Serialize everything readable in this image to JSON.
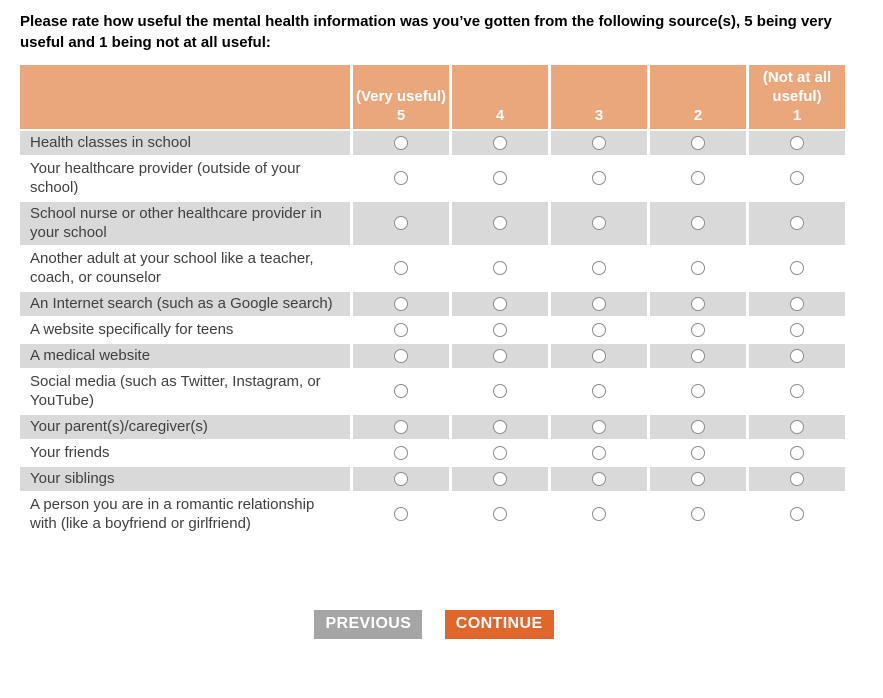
{
  "question": {
    "text": "Please rate how useful the mental health information was you’ve gotten from the following source(s), 5 being very useful and 1 being not at all useful:"
  },
  "table": {
    "columns": [
      {
        "caption": "(Very useful)",
        "value": "5"
      },
      {
        "caption": "",
        "value": "4"
      },
      {
        "caption": "",
        "value": "3"
      },
      {
        "caption": "",
        "value": "2"
      },
      {
        "caption": "(Not at all useful)",
        "value": "1"
      }
    ],
    "rows": [
      {
        "label": "Health classes in school",
        "selected": null
      },
      {
        "label": "Your healthcare provider (outside of your school)",
        "selected": null
      },
      {
        "label": "School nurse or other healthcare provider in your school",
        "selected": null
      },
      {
        "label": "Another adult at your school like a teacher, coach, or counselor",
        "selected": null
      },
      {
        "label": "An Internet search (such as a Google search)",
        "selected": null
      },
      {
        "label": "A website specifically for teens",
        "selected": null
      },
      {
        "label": "A medical website",
        "selected": null
      },
      {
        "label": "Social media (such as Twitter, Instagram, or YouTube)",
        "selected": null
      },
      {
        "label": "Your parent(s)/caregiver(s)",
        "selected": null
      },
      {
        "label": "Your friends",
        "selected": null
      },
      {
        "label": "Your siblings",
        "selected": null
      },
      {
        "label": "A person you are in a romantic relationship with (like a boyfriend or girlfriend)",
        "selected": null
      }
    ]
  },
  "buttons": {
    "previous": "PREVIOUS",
    "continue": "CONTINUE"
  },
  "colors": {
    "header_bg": "#EAA77C",
    "header_text": "#FFFFFF",
    "alt_row_bg": "#D9D9D9",
    "body_text": "#404040",
    "previous_bg": "#A5A5A5",
    "continue_bg": "#E0662B"
  }
}
